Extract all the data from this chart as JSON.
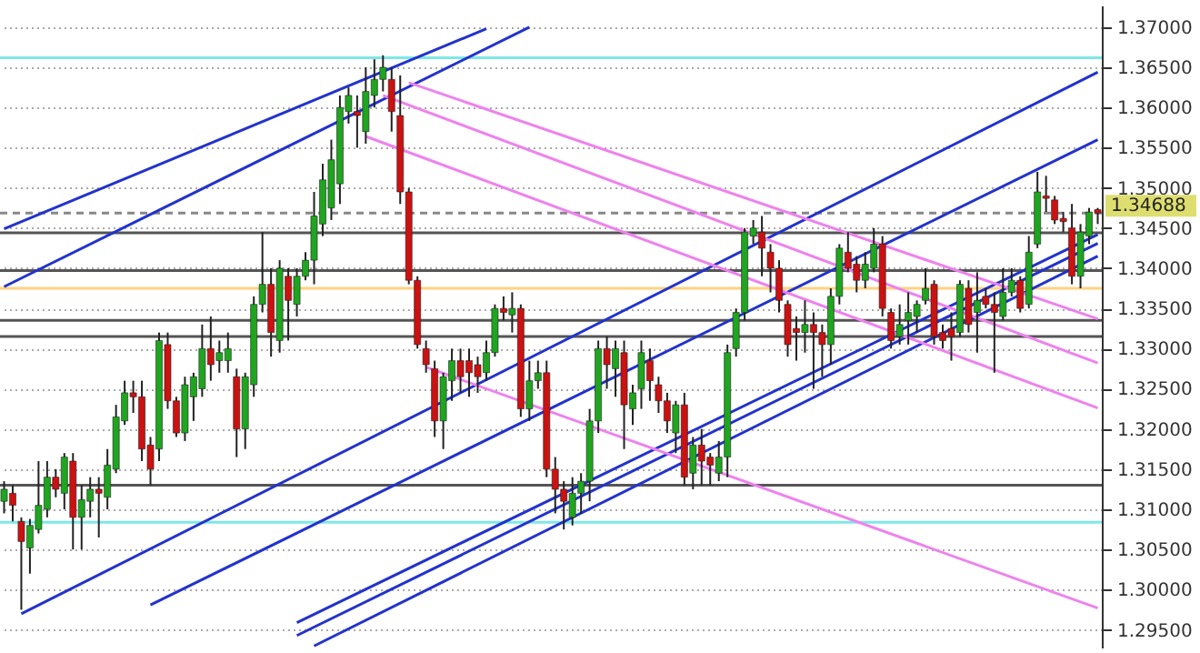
{
  "chart_data": {
    "type": "candlestick",
    "categories": [
      null,
      null,
      null,
      null,
      null,
      null,
      null,
      null,
      null,
      null,
      null,
      null,
      null,
      null,
      null,
      null,
      null,
      null,
      null,
      null,
      null,
      null,
      null,
      null,
      null,
      null,
      null,
      null,
      null,
      null,
      null,
      null,
      null,
      null,
      null,
      null,
      null,
      null,
      null,
      null,
      null,
      null,
      null,
      null,
      null,
      null,
      null,
      null,
      null,
      null,
      null,
      null,
      null,
      null,
      null,
      null,
      null,
      null,
      null,
      null,
      null,
      null,
      null,
      null,
      null,
      null,
      null,
      null,
      null,
      null,
      null,
      null,
      null,
      null,
      null,
      null,
      null,
      null,
      null,
      null,
      null,
      null,
      null,
      null,
      null,
      null,
      null,
      null,
      null,
      null,
      null,
      null,
      null,
      null,
      null,
      null,
      null,
      null,
      null,
      null,
      null,
      null,
      null,
      null,
      null,
      null,
      null,
      null,
      null,
      null,
      null,
      null,
      null,
      null,
      null,
      null,
      null,
      null,
      null,
      null,
      null,
      null,
      null,
      null,
      null,
      null,
      null,
      null
    ],
    "ohlc": [
      [
        1.311,
        1.3135,
        1.3095,
        1.3125
      ],
      [
        1.312,
        1.313,
        1.3085,
        1.3105
      ],
      [
        1.3085,
        1.309,
        1.2975,
        1.306
      ],
      [
        1.3052,
        1.3088,
        1.302,
        1.308
      ],
      [
        1.3075,
        1.316,
        1.307,
        1.3105
      ],
      [
        1.31,
        1.316,
        1.309,
        1.314
      ],
      [
        1.314,
        1.315,
        1.3115,
        1.3125
      ],
      [
        1.312,
        1.317,
        1.31,
        1.3165
      ],
      [
        1.316,
        1.317,
        1.305,
        1.309
      ],
      [
        1.309,
        1.313,
        1.305,
        1.3112
      ],
      [
        1.311,
        1.314,
        1.309,
        1.3125
      ],
      [
        1.3125,
        1.314,
        1.3065,
        1.312
      ],
      [
        1.3115,
        1.3175,
        1.31,
        1.3155
      ],
      [
        1.315,
        1.323,
        1.3145,
        1.3215
      ],
      [
        1.321,
        1.326,
        1.3205,
        1.3245
      ],
      [
        1.3245,
        1.326,
        1.322,
        1.324
      ],
      [
        1.324,
        1.326,
        1.316,
        1.3175
      ],
      [
        1.318,
        1.319,
        1.313,
        1.315
      ],
      [
        1.3175,
        1.332,
        1.316,
        1.331
      ],
      [
        1.3305,
        1.332,
        1.3225,
        1.3235
      ],
      [
        1.3235,
        1.324,
        1.319,
        1.3195
      ],
      [
        1.3195,
        1.3265,
        1.3185,
        1.3255
      ],
      [
        1.324,
        1.327,
        1.321,
        1.3265
      ],
      [
        1.325,
        1.333,
        1.324,
        1.33
      ],
      [
        1.33,
        1.334,
        1.326,
        1.328
      ],
      [
        1.3285,
        1.331,
        1.327,
        1.3295
      ],
      [
        1.3285,
        1.332,
        1.327,
        1.33
      ],
      [
        1.3265,
        1.3275,
        1.3165,
        1.32
      ],
      [
        1.32,
        1.327,
        1.3175,
        1.3265
      ],
      [
        1.3255,
        1.3365,
        1.324,
        1.3355
      ],
      [
        1.3355,
        1.3445,
        1.3345,
        1.338
      ],
      [
        1.338,
        1.34,
        1.329,
        1.332
      ],
      [
        1.331,
        1.341,
        1.3295,
        1.34
      ],
      [
        1.339,
        1.34,
        1.331,
        1.336
      ],
      [
        1.3355,
        1.34,
        1.334,
        1.339
      ],
      [
        1.339,
        1.342,
        1.3385,
        1.341
      ],
      [
        1.341,
        1.3495,
        1.338,
        1.3465
      ],
      [
        1.3455,
        1.353,
        1.344,
        1.351
      ],
      [
        1.3475,
        1.356,
        1.346,
        1.3535
      ],
      [
        1.3505,
        1.3615,
        1.348,
        1.36
      ],
      [
        1.3595,
        1.3625,
        1.358,
        1.3615
      ],
      [
        1.3595,
        1.3615,
        1.355,
        1.359
      ],
      [
        1.357,
        1.365,
        1.3555,
        1.362
      ],
      [
        1.3615,
        1.366,
        1.36,
        1.3635
      ],
      [
        1.3635,
        1.3665,
        1.362,
        1.365
      ],
      [
        1.3635,
        1.365,
        1.357,
        1.3595
      ],
      [
        1.359,
        1.364,
        1.348,
        1.3495
      ],
      [
        1.3495,
        1.35,
        1.338,
        1.3385
      ],
      [
        1.3385,
        1.339,
        1.33,
        1.3305
      ],
      [
        1.33,
        1.331,
        1.327,
        1.328
      ],
      [
        1.3275,
        1.3285,
        1.319,
        1.321
      ],
      [
        1.321,
        1.327,
        1.3175,
        1.3265
      ],
      [
        1.326,
        1.33,
        1.3235,
        1.3285
      ],
      [
        1.3285,
        1.33,
        1.3245,
        1.3265
      ],
      [
        1.3285,
        1.33,
        1.324,
        1.327
      ],
      [
        1.328,
        1.329,
        1.3245,
        1.3265
      ],
      [
        1.327,
        1.331,
        1.326,
        1.3295
      ],
      [
        1.3295,
        1.3355,
        1.329,
        1.335
      ],
      [
        1.335,
        1.3365,
        1.3335,
        1.3345
      ],
      [
        1.3342,
        1.337,
        1.332,
        1.335
      ],
      [
        1.335,
        1.3355,
        1.3215,
        1.3225
      ],
      [
        1.3225,
        1.3285,
        1.321,
        1.326
      ],
      [
        1.326,
        1.3285,
        1.325,
        1.327
      ],
      [
        1.327,
        1.3285,
        1.314,
        1.315
      ],
      [
        1.315,
        1.3165,
        1.3095,
        1.3125
      ],
      [
        1.3125,
        1.3135,
        1.3075,
        1.311
      ],
      [
        1.309,
        1.314,
        1.308,
        1.312
      ],
      [
        1.312,
        1.3145,
        1.3095,
        1.3135
      ],
      [
        1.3135,
        1.3225,
        1.311,
        1.321
      ],
      [
        1.321,
        1.331,
        1.3195,
        1.33
      ],
      [
        1.33,
        1.3315,
        1.325,
        1.328
      ],
      [
        1.3275,
        1.331,
        1.324,
        1.33
      ],
      [
        1.3295,
        1.331,
        1.3175,
        1.323
      ],
      [
        1.3225,
        1.3255,
        1.3205,
        1.3245
      ],
      [
        1.325,
        1.331,
        1.3225,
        1.3295
      ],
      [
        1.3285,
        1.33,
        1.3235,
        1.326
      ],
      [
        1.3255,
        1.3265,
        1.322,
        1.3235
      ],
      [
        1.3235,
        1.3245,
        1.3195,
        1.321
      ],
      [
        1.3195,
        1.3235,
        1.317,
        1.323
      ],
      [
        1.323,
        1.3245,
        1.313,
        1.314
      ],
      [
        1.3145,
        1.319,
        1.3125,
        1.318
      ],
      [
        1.318,
        1.32,
        1.313,
        1.316
      ],
      [
        1.3165,
        1.317,
        1.313,
        1.3155
      ],
      [
        1.3145,
        1.3185,
        1.3135,
        1.3165
      ],
      [
        1.3165,
        1.3305,
        1.314,
        1.3295
      ],
      [
        1.33,
        1.335,
        1.329,
        1.3345
      ],
      [
        1.3345,
        1.345,
        1.3335,
        1.3445
      ],
      [
        1.344,
        1.346,
        1.343,
        1.345
      ],
      [
        1.3445,
        1.3465,
        1.339,
        1.3425
      ],
      [
        1.342,
        1.343,
        1.337,
        1.34
      ],
      [
        1.34,
        1.341,
        1.3345,
        1.336
      ],
      [
        1.3355,
        1.336,
        1.329,
        1.3305
      ],
      [
        1.3325,
        1.334,
        1.3285,
        1.332
      ],
      [
        1.332,
        1.336,
        1.3295,
        1.333
      ],
      [
        1.333,
        1.3345,
        1.325,
        1.332
      ],
      [
        1.332,
        1.333,
        1.3265,
        1.3305
      ],
      [
        1.3305,
        1.3375,
        1.328,
        1.3365
      ],
      [
        1.3365,
        1.343,
        1.3355,
        1.3425
      ],
      [
        1.342,
        1.3445,
        1.3395,
        1.34
      ],
      [
        1.3405,
        1.3415,
        1.337,
        1.3385
      ],
      [
        1.3385,
        1.342,
        1.3375,
        1.3405
      ],
      [
        1.34,
        1.345,
        1.3395,
        1.343
      ],
      [
        1.343,
        1.344,
        1.334,
        1.335
      ],
      [
        1.3345,
        1.335,
        1.33,
        1.331
      ],
      [
        1.3315,
        1.3355,
        1.3305,
        1.333
      ],
      [
        1.3335,
        1.337,
        1.3305,
        1.3345
      ],
      [
        1.334,
        1.336,
        1.332,
        1.3355
      ],
      [
        1.336,
        1.34,
        1.3355,
        1.3375
      ],
      [
        1.338,
        1.3385,
        1.3305,
        1.3315
      ],
      [
        1.332,
        1.333,
        1.33,
        1.331
      ],
      [
        1.3325,
        1.3345,
        1.3285,
        1.3315
      ],
      [
        1.332,
        1.3385,
        1.3315,
        1.338
      ],
      [
        1.3375,
        1.3385,
        1.332,
        1.333
      ],
      [
        1.3345,
        1.3395,
        1.3295,
        1.336
      ],
      [
        1.3365,
        1.3375,
        1.335,
        1.3355
      ],
      [
        1.3355,
        1.337,
        1.327,
        1.3345
      ],
      [
        1.334,
        1.34,
        1.3335,
        1.337
      ],
      [
        1.337,
        1.34,
        1.3365,
        1.3385
      ],
      [
        1.3385,
        1.339,
        1.3345,
        1.335
      ],
      [
        1.3355,
        1.344,
        1.335,
        1.342
      ],
      [
        1.343,
        1.352,
        1.3425,
        1.3495
      ],
      [
        1.349,
        1.3515,
        1.347,
        1.3487
      ],
      [
        1.3485,
        1.349,
        1.3455,
        1.346
      ],
      [
        1.3462,
        1.347,
        1.3445,
        1.3458
      ],
      [
        1.345,
        1.348,
        1.338,
        1.339
      ],
      [
        1.339,
        1.3455,
        1.3375,
        1.3445
      ],
      [
        1.344,
        1.3475,
        1.343,
        1.347
      ],
      [
        1.3473,
        1.3475,
        1.3455,
        1.34688
      ]
    ],
    "series": [
      {
        "type": "line",
        "color": "#2233cc",
        "values": [
          1.3449,
          null,
          null,
          null,
          null,
          null,
          null,
          null,
          null,
          null,
          null,
          null,
          null,
          null,
          null,
          null,
          null,
          null,
          null,
          null,
          null,
          null,
          null,
          null,
          null,
          null,
          null,
          null,
          null,
          null,
          null,
          null,
          null,
          null,
          null,
          null,
          null,
          null,
          null,
          null,
          null,
          null,
          null,
          null,
          null,
          null,
          null,
          null,
          null,
          null,
          null,
          null,
          null,
          null,
          null,
          null,
          1.3698,
          null,
          null,
          null,
          null,
          null,
          null,
          null,
          null,
          null,
          null,
          null,
          null,
          null,
          null,
          null,
          null,
          null,
          null,
          null,
          null,
          null,
          null,
          null,
          null,
          null,
          null,
          null,
          null,
          null,
          null,
          null,
          null,
          null,
          null,
          null,
          null,
          null,
          null,
          null,
          null,
          null,
          null,
          null,
          null,
          null,
          null,
          null,
          null,
          null,
          null,
          null,
          null,
          null,
          null,
          null,
          null,
          null,
          null,
          null,
          null,
          null,
          null,
          null,
          null,
          null,
          null,
          null,
          null,
          null,
          null,
          null
        ]
      },
      {
        "type": "line",
        "color": "#2233cc",
        "values": [
          1.3377,
          null,
          null,
          null,
          null,
          null,
          null,
          null,
          null,
          null,
          null,
          null,
          null,
          null,
          null,
          null,
          null,
          null,
          null,
          null,
          null,
          null,
          null,
          null,
          null,
          null,
          null,
          null,
          null,
          null,
          null,
          null,
          null,
          null,
          null,
          null,
          null,
          null,
          null,
          null,
          null,
          null,
          null,
          null,
          null,
          null,
          null,
          null,
          null,
          null,
          null,
          null,
          null,
          null,
          null,
          null,
          null,
          null,
          null,
          null,
          null,
          1.37,
          null,
          null,
          null,
          null,
          null,
          null,
          null,
          null,
          null,
          null,
          null,
          null,
          null,
          null,
          null,
          null,
          null,
          null,
          null,
          null,
          null,
          null,
          null,
          null,
          null,
          null,
          null,
          null,
          null,
          null,
          null,
          null,
          null,
          null,
          null,
          null,
          null,
          null,
          null,
          null,
          null,
          null,
          null,
          null,
          null,
          null,
          null,
          null,
          null,
          null,
          null,
          null,
          null,
          null,
          null,
          null,
          null,
          null,
          null,
          null,
          null,
          null,
          null,
          null,
          null,
          null
        ]
      },
      {
        "type": "line",
        "color": "#2233cc",
        "values": [
          null,
          null,
          1.297,
          null,
          null,
          null,
          null,
          null,
          null,
          null,
          null,
          null,
          null,
          null,
          null,
          null,
          null,
          null,
          null,
          null,
          null,
          null,
          null,
          null,
          null,
          null,
          null,
          null,
          null,
          null,
          null,
          null,
          null,
          null,
          null,
          null,
          null,
          null,
          null,
          null,
          null,
          null,
          null,
          null,
          null,
          null,
          null,
          null,
          null,
          null,
          null,
          null,
          null,
          null,
          null,
          null,
          null,
          null,
          null,
          null,
          null,
          null,
          null,
          null,
          null,
          null,
          null,
          null,
          null,
          null,
          null,
          null,
          null,
          null,
          null,
          null,
          null,
          null,
          null,
          null,
          null,
          null,
          null,
          null,
          null,
          null,
          null,
          null,
          null,
          null,
          null,
          null,
          null,
          null,
          null,
          null,
          null,
          null,
          null,
          null,
          null,
          null,
          null,
          null,
          null,
          null,
          null,
          null,
          null,
          null,
          null,
          null,
          null,
          null,
          null,
          null,
          null,
          null,
          null,
          null,
          null,
          null,
          null,
          null,
          null,
          null,
          null,
          1.3644
        ]
      },
      {
        "type": "line",
        "color": "#2233cc",
        "values": [
          null,
          null,
          null,
          null,
          null,
          null,
          null,
          null,
          null,
          null,
          null,
          null,
          null,
          null,
          null,
          null,
          null,
          1.2981,
          null,
          null,
          null,
          null,
          null,
          null,
          null,
          null,
          null,
          null,
          null,
          null,
          null,
          null,
          null,
          null,
          null,
          null,
          null,
          null,
          null,
          null,
          null,
          null,
          null,
          null,
          null,
          null,
          null,
          null,
          null,
          null,
          null,
          null,
          null,
          null,
          null,
          null,
          null,
          null,
          null,
          null,
          null,
          null,
          null,
          null,
          null,
          null,
          null,
          null,
          null,
          null,
          null,
          null,
          null,
          null,
          null,
          null,
          null,
          null,
          null,
          null,
          null,
          null,
          null,
          null,
          null,
          null,
          null,
          null,
          null,
          null,
          null,
          null,
          null,
          null,
          null,
          null,
          null,
          null,
          null,
          null,
          null,
          null,
          null,
          null,
          null,
          null,
          null,
          null,
          null,
          null,
          null,
          null,
          null,
          null,
          null,
          null,
          null,
          null,
          null,
          null,
          null,
          null,
          null,
          null,
          null,
          null,
          null,
          1.356
        ]
      },
      {
        "type": "line",
        "color": "#2233cc",
        "values": [
          null,
          null,
          null,
          null,
          null,
          null,
          null,
          null,
          null,
          null,
          null,
          null,
          null,
          null,
          null,
          null,
          null,
          null,
          null,
          null,
          null,
          null,
          null,
          null,
          null,
          null,
          null,
          null,
          null,
          null,
          null,
          null,
          null,
          null,
          1.2959,
          null,
          null,
          null,
          null,
          null,
          null,
          null,
          null,
          null,
          null,
          null,
          null,
          null,
          null,
          null,
          null,
          null,
          null,
          null,
          null,
          null,
          null,
          null,
          null,
          null,
          null,
          null,
          null,
          null,
          null,
          null,
          null,
          null,
          null,
          null,
          null,
          null,
          null,
          null,
          null,
          null,
          null,
          null,
          null,
          null,
          null,
          null,
          null,
          null,
          null,
          null,
          null,
          null,
          null,
          null,
          null,
          null,
          null,
          null,
          null,
          null,
          null,
          null,
          null,
          null,
          null,
          null,
          null,
          null,
          null,
          null,
          null,
          null,
          null,
          null,
          null,
          null,
          null,
          null,
          null,
          null,
          null,
          null,
          null,
          null,
          null,
          null,
          null,
          null,
          null,
          null,
          null,
          1.3442
        ]
      },
      {
        "type": "line",
        "color": "#2233cc",
        "values": [
          null,
          null,
          null,
          null,
          null,
          null,
          null,
          null,
          null,
          null,
          null,
          null,
          null,
          null,
          null,
          null,
          null,
          null,
          null,
          null,
          null,
          null,
          null,
          null,
          null,
          null,
          null,
          null,
          null,
          null,
          null,
          null,
          null,
          null,
          1.2943,
          null,
          null,
          null,
          null,
          null,
          null,
          null,
          null,
          null,
          null,
          null,
          null,
          null,
          null,
          null,
          null,
          null,
          null,
          null,
          null,
          null,
          null,
          null,
          null,
          null,
          null,
          null,
          null,
          null,
          null,
          null,
          null,
          null,
          null,
          null,
          null,
          null,
          null,
          null,
          null,
          null,
          null,
          null,
          null,
          null,
          null,
          null,
          null,
          null,
          null,
          null,
          null,
          null,
          null,
          null,
          null,
          null,
          null,
          null,
          null,
          null,
          null,
          null,
          null,
          null,
          null,
          null,
          null,
          null,
          null,
          null,
          null,
          null,
          null,
          null,
          null,
          null,
          null,
          null,
          null,
          null,
          null,
          null,
          null,
          null,
          null,
          null,
          null,
          null,
          null,
          null,
          null,
          1.3431
        ]
      },
      {
        "type": "line",
        "color": "#2233cc",
        "values": [
          null,
          null,
          null,
          null,
          null,
          null,
          null,
          null,
          null,
          null,
          null,
          null,
          null,
          null,
          null,
          null,
          null,
          null,
          null,
          null,
          null,
          null,
          null,
          null,
          null,
          null,
          null,
          null,
          null,
          null,
          null,
          null,
          null,
          null,
          null,
          null,
          1.293,
          null,
          null,
          null,
          null,
          null,
          null,
          null,
          null,
          null,
          null,
          null,
          null,
          null,
          null,
          null,
          null,
          null,
          null,
          null,
          null,
          null,
          null,
          null,
          null,
          null,
          null,
          null,
          null,
          null,
          null,
          null,
          null,
          null,
          null,
          null,
          null,
          null,
          null,
          null,
          null,
          null,
          null,
          null,
          null,
          null,
          null,
          null,
          null,
          null,
          null,
          null,
          null,
          null,
          null,
          null,
          null,
          null,
          null,
          null,
          null,
          null,
          null,
          null,
          null,
          null,
          null,
          null,
          null,
          null,
          null,
          null,
          null,
          null,
          null,
          null,
          null,
          null,
          null,
          null,
          null,
          null,
          null,
          null,
          null,
          null,
          null,
          null,
          null,
          null,
          null,
          1.3415
        ]
      },
      {
        "type": "line",
        "color": "#ee82ee",
        "values": [
          null,
          null,
          null,
          null,
          null,
          null,
          null,
          null,
          null,
          null,
          null,
          null,
          null,
          null,
          null,
          null,
          null,
          null,
          null,
          null,
          null,
          null,
          null,
          null,
          null,
          null,
          null,
          null,
          null,
          null,
          null,
          null,
          null,
          null,
          null,
          null,
          null,
          null,
          null,
          null,
          null,
          null,
          null,
          null,
          null,
          null,
          null,
          1.3631,
          null,
          null,
          null,
          null,
          null,
          null,
          null,
          null,
          null,
          null,
          null,
          null,
          null,
          null,
          null,
          null,
          null,
          null,
          null,
          null,
          null,
          null,
          null,
          null,
          null,
          null,
          null,
          null,
          null,
          null,
          null,
          null,
          null,
          null,
          null,
          null,
          null,
          null,
          null,
          null,
          null,
          null,
          null,
          null,
          null,
          null,
          null,
          null,
          null,
          null,
          null,
          null,
          null,
          null,
          null,
          null,
          null,
          null,
          null,
          null,
          null,
          null,
          null,
          null,
          null,
          null,
          null,
          null,
          null,
          null,
          null,
          null,
          null,
          null,
          null,
          null,
          null,
          null,
          null,
          1.3337
        ]
      },
      {
        "type": "line",
        "color": "#ee82ee",
        "values": [
          null,
          null,
          null,
          null,
          null,
          null,
          null,
          null,
          null,
          null,
          null,
          null,
          null,
          null,
          null,
          null,
          null,
          null,
          null,
          null,
          null,
          null,
          null,
          null,
          null,
          null,
          null,
          null,
          null,
          null,
          null,
          null,
          null,
          null,
          null,
          null,
          null,
          null,
          null,
          null,
          null,
          null,
          null,
          null,
          1.3615,
          null,
          null,
          null,
          null,
          null,
          null,
          null,
          null,
          null,
          null,
          null,
          null,
          null,
          null,
          null,
          null,
          null,
          null,
          null,
          null,
          null,
          null,
          null,
          null,
          null,
          null,
          null,
          null,
          null,
          null,
          null,
          null,
          null,
          null,
          null,
          null,
          null,
          null,
          null,
          null,
          null,
          null,
          null,
          null,
          null,
          null,
          null,
          null,
          null,
          null,
          null,
          null,
          null,
          null,
          null,
          null,
          null,
          null,
          null,
          null,
          null,
          null,
          null,
          null,
          null,
          null,
          null,
          null,
          null,
          null,
          null,
          null,
          null,
          null,
          null,
          null,
          null,
          null,
          null,
          null,
          null,
          null,
          1.3282
        ]
      },
      {
        "type": "line",
        "color": "#ee82ee",
        "values": [
          null,
          null,
          null,
          null,
          null,
          null,
          null,
          null,
          null,
          null,
          null,
          null,
          null,
          null,
          null,
          null,
          null,
          null,
          null,
          null,
          null,
          null,
          null,
          null,
          null,
          null,
          null,
          null,
          null,
          null,
          null,
          null,
          null,
          null,
          null,
          null,
          null,
          null,
          null,
          null,
          null,
          null,
          1.3564,
          null,
          null,
          null,
          null,
          null,
          null,
          null,
          null,
          null,
          null,
          null,
          null,
          null,
          null,
          null,
          null,
          null,
          null,
          null,
          null,
          null,
          null,
          null,
          null,
          null,
          null,
          null,
          null,
          null,
          null,
          null,
          null,
          null,
          null,
          null,
          null,
          null,
          null,
          null,
          null,
          null,
          null,
          null,
          null,
          null,
          null,
          null,
          null,
          null,
          null,
          null,
          null,
          null,
          null,
          null,
          null,
          null,
          null,
          null,
          null,
          null,
          null,
          null,
          null,
          null,
          null,
          null,
          null,
          null,
          null,
          null,
          null,
          null,
          null,
          null,
          null,
          null,
          null,
          null,
          null,
          null,
          null,
          null,
          null,
          1.3226
        ]
      },
      {
        "type": "line",
        "color": "#ee82ee",
        "values": [
          null,
          null,
          null,
          null,
          null,
          null,
          null,
          null,
          null,
          null,
          null,
          null,
          null,
          null,
          null,
          null,
          null,
          null,
          null,
          null,
          null,
          null,
          null,
          null,
          null,
          null,
          null,
          null,
          null,
          null,
          null,
          null,
          null,
          null,
          null,
          null,
          null,
          null,
          null,
          null,
          null,
          null,
          null,
          null,
          null,
          null,
          null,
          null,
          null,
          1.3277,
          null,
          null,
          null,
          null,
          null,
          null,
          null,
          null,
          null,
          null,
          null,
          null,
          null,
          null,
          null,
          null,
          null,
          null,
          null,
          null,
          null,
          null,
          null,
          null,
          null,
          null,
          null,
          null,
          null,
          null,
          null,
          null,
          null,
          null,
          null,
          null,
          null,
          null,
          null,
          null,
          null,
          null,
          null,
          null,
          null,
          null,
          null,
          null,
          null,
          null,
          null,
          null,
          null,
          null,
          null,
          null,
          null,
          null,
          null,
          null,
          null,
          null,
          null,
          null,
          null,
          null,
          null,
          null,
          null,
          null,
          null,
          null,
          null,
          null,
          null,
          null,
          null,
          1.2977
        ]
      }
    ],
    "ylim": [
      1.2928,
      1.3727
    ],
    "yticks": [
      {
        "value": 1.295,
        "label": "1.29500"
      },
      {
        "value": 1.3,
        "label": "1.30000"
      },
      {
        "value": 1.305,
        "label": "1.30500"
      },
      {
        "value": 1.31,
        "label": "1.31000"
      },
      {
        "value": 1.315,
        "label": "1.31500"
      },
      {
        "value": 1.32,
        "label": "1.32000"
      },
      {
        "value": 1.325,
        "label": "1.32500"
      },
      {
        "value": 1.33,
        "label": "1.33000"
      },
      {
        "value": 1.335,
        "label": "1.33500"
      },
      {
        "value": 1.34,
        "label": "1.34000"
      },
      {
        "value": 1.345,
        "label": "1.34500"
      },
      {
        "value": 1.35,
        "label": "1.35000"
      },
      {
        "value": 1.355,
        "label": "1.35500"
      },
      {
        "value": 1.36,
        "label": "1.36000"
      },
      {
        "value": 1.365,
        "label": "1.36500"
      },
      {
        "value": 1.37,
        "label": "1.37000"
      }
    ],
    "ref_lines": [
      {
        "axis": "y",
        "value": 1.3662,
        "color": "#7fe7e7"
      },
      {
        "axis": "y",
        "value": 1.3084,
        "color": "#7fe7e7"
      },
      {
        "axis": "y",
        "value": 1.3444,
        "color": "#555555"
      },
      {
        "axis": "y",
        "value": 1.3397,
        "color": "#555555"
      },
      {
        "axis": "y",
        "value": 1.3335,
        "color": "#555555"
      },
      {
        "axis": "y",
        "value": 1.3315,
        "color": "#555555"
      },
      {
        "axis": "y",
        "value": 1.313,
        "color": "#555555"
      },
      {
        "axis": "y",
        "value": 1.3375,
        "color": "#ffd27f"
      },
      {
        "axis": "y",
        "value": 1.34688,
        "label": "1.34688",
        "color": "#888888",
        "line_style": "dashed"
      }
    ],
    "grid": "y",
    "tick_labels": "y"
  }
}
